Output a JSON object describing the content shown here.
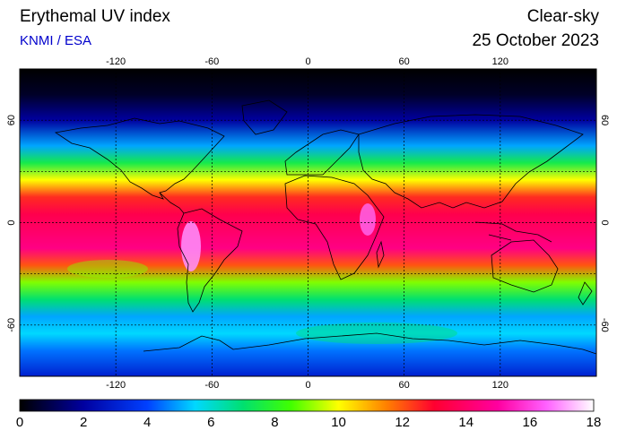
{
  "header": {
    "title": "Erythemal UV index",
    "credit": "KNMI / ESA",
    "condition": "Clear-sky",
    "date": "25 October 2023"
  },
  "map": {
    "projection": "equirectangular",
    "lon_range": [
      -180,
      180
    ],
    "lat_range": [
      -90,
      90
    ],
    "gridlines": true,
    "lon_ticks": [
      -120,
      -60,
      0,
      60,
      120
    ],
    "lat_ticks": [
      60,
      0,
      -60
    ],
    "lon_tick_labels": [
      "-120",
      "-60",
      "0",
      "60",
      "120"
    ],
    "lat_tick_labels": [
      "60",
      "0",
      "-60"
    ],
    "uv_profile_by_latitude": [
      {
        "lat": 90,
        "uv": 0
      },
      {
        "lat": 75,
        "uv": 0.5
      },
      {
        "lat": 60,
        "uv": 2
      },
      {
        "lat": 45,
        "uv": 5
      },
      {
        "lat": 35,
        "uv": 7.5
      },
      {
        "lat": 25,
        "uv": 10
      },
      {
        "lat": 15,
        "uv": 12.5
      },
      {
        "lat": 5,
        "uv": 13.5
      },
      {
        "lat": -5,
        "uv": 14
      },
      {
        "lat": -15,
        "uv": 14.5
      },
      {
        "lat": -25,
        "uv": 12
      },
      {
        "lat": -35,
        "uv": 9
      },
      {
        "lat": -45,
        "uv": 7
      },
      {
        "lat": -55,
        "uv": 5
      },
      {
        "lat": -65,
        "uv": 5.5
      },
      {
        "lat": -75,
        "uv": 4.5
      },
      {
        "lat": -90,
        "uv": 3
      }
    ]
  },
  "colorbar": {
    "min": 0,
    "max": 18,
    "labels": [
      "0",
      "2",
      "4",
      "6",
      "8",
      "10",
      "12",
      "14",
      "16",
      "18"
    ],
    "stops": [
      {
        "v": 0,
        "c": "#000000"
      },
      {
        "v": 2,
        "c": "#0000a0"
      },
      {
        "v": 4,
        "c": "#0040ff"
      },
      {
        "v": 5.5,
        "c": "#00d8ff"
      },
      {
        "v": 7,
        "c": "#00e070"
      },
      {
        "v": 8.5,
        "c": "#40ff00"
      },
      {
        "v": 10,
        "c": "#ffff00"
      },
      {
        "v": 11.5,
        "c": "#ff8000"
      },
      {
        "v": 13,
        "c": "#ff0030"
      },
      {
        "v": 15,
        "c": "#ff00a0"
      },
      {
        "v": 16.5,
        "c": "#ff60ff"
      },
      {
        "v": 18,
        "c": "#ffffff"
      }
    ]
  }
}
